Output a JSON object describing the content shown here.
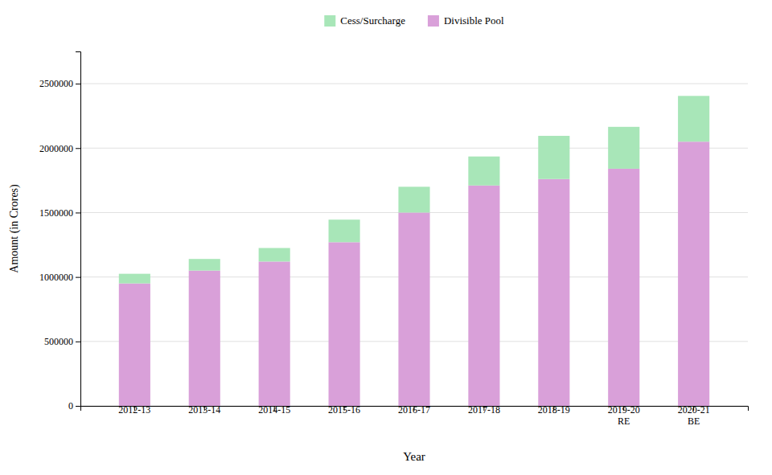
{
  "chart_data": {
    "type": "bar",
    "stacked": true,
    "categories": [
      "2012-13",
      "2013-14",
      "2014-15",
      "2015-16",
      "2016-17",
      "2017-18",
      "2018-19",
      "2019-20\nRE",
      "2020-21\nBE"
    ],
    "series": [
      {
        "name": "Divisible Pool",
        "color": "#d9a0d9",
        "values": [
          950000,
          1050000,
          1120000,
          1270000,
          1500000,
          1710000,
          1760000,
          1840000,
          2050000
        ]
      },
      {
        "name": "Cess/Surcharge",
        "color": "#a8e6b8",
        "values": [
          75000,
          90000,
          105000,
          175000,
          200000,
          225000,
          335000,
          325000,
          355000
        ]
      }
    ],
    "x_label": "Year",
    "y_label": "Amount (in Crores)",
    "ylim": [
      0,
      2750000
    ],
    "yticks": [
      0,
      500000,
      1000000,
      1500000,
      2000000,
      2500000
    ],
    "grid": true,
    "legend": "top"
  }
}
